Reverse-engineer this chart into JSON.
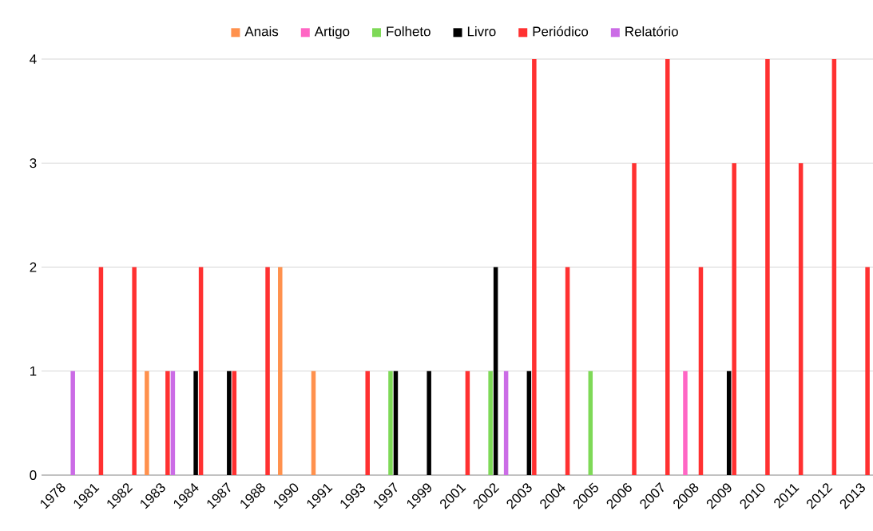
{
  "chart_data": {
    "type": "bar",
    "categories": [
      "1978",
      "1981",
      "1982",
      "1983",
      "1984",
      "1987",
      "1988",
      "1990",
      "1991",
      "1993",
      "1997",
      "1999",
      "2001",
      "2002",
      "2003",
      "2004",
      "2005",
      "2006",
      "2007",
      "2008",
      "2009",
      "2010",
      "2011",
      "2012",
      "2013"
    ],
    "series": [
      {
        "name": "Anais",
        "color": "#ff914d",
        "values": [
          0,
          0,
          0,
          1,
          0,
          0,
          0,
          2,
          1,
          0,
          0,
          0,
          0,
          0,
          0,
          0,
          0,
          0,
          0,
          0,
          0,
          0,
          0,
          0,
          0
        ]
      },
      {
        "name": "Artigo",
        "color": "#ff66c4",
        "values": [
          0,
          0,
          0,
          0,
          0,
          0,
          0,
          0,
          0,
          0,
          0,
          0,
          0,
          0,
          0,
          0,
          0,
          0,
          0,
          1,
          0,
          0,
          0,
          0,
          0
        ]
      },
      {
        "name": "Folheto",
        "color": "#7ed957",
        "values": [
          0,
          0,
          0,
          0,
          0,
          0,
          0,
          0,
          0,
          0,
          1,
          0,
          0,
          1,
          0,
          0,
          1,
          0,
          0,
          0,
          0,
          0,
          0,
          0,
          0
        ]
      },
      {
        "name": "Livro",
        "color": "#000000",
        "values": [
          0,
          0,
          0,
          0,
          1,
          1,
          0,
          0,
          0,
          0,
          1,
          1,
          0,
          2,
          1,
          0,
          0,
          0,
          0,
          0,
          1,
          0,
          0,
          0,
          0
        ]
      },
      {
        "name": "Periódico",
        "color": "#ff3131",
        "values": [
          0,
          2,
          2,
          1,
          2,
          1,
          2,
          0,
          0,
          1,
          0,
          0,
          1,
          0,
          4,
          2,
          0,
          3,
          4,
          2,
          3,
          4,
          3,
          4,
          2
        ]
      },
      {
        "name": "Relatório",
        "color": "#cb6ce6",
        "values": [
          1,
          0,
          0,
          1,
          0,
          0,
          0,
          0,
          0,
          0,
          0,
          0,
          0,
          1,
          0,
          0,
          0,
          0,
          0,
          0,
          0,
          0,
          0,
          0,
          0
        ]
      }
    ],
    "ylim": [
      0,
      4
    ],
    "yticks": [
      0,
      1,
      2,
      3,
      4
    ],
    "grid": "y",
    "legend": "top"
  }
}
